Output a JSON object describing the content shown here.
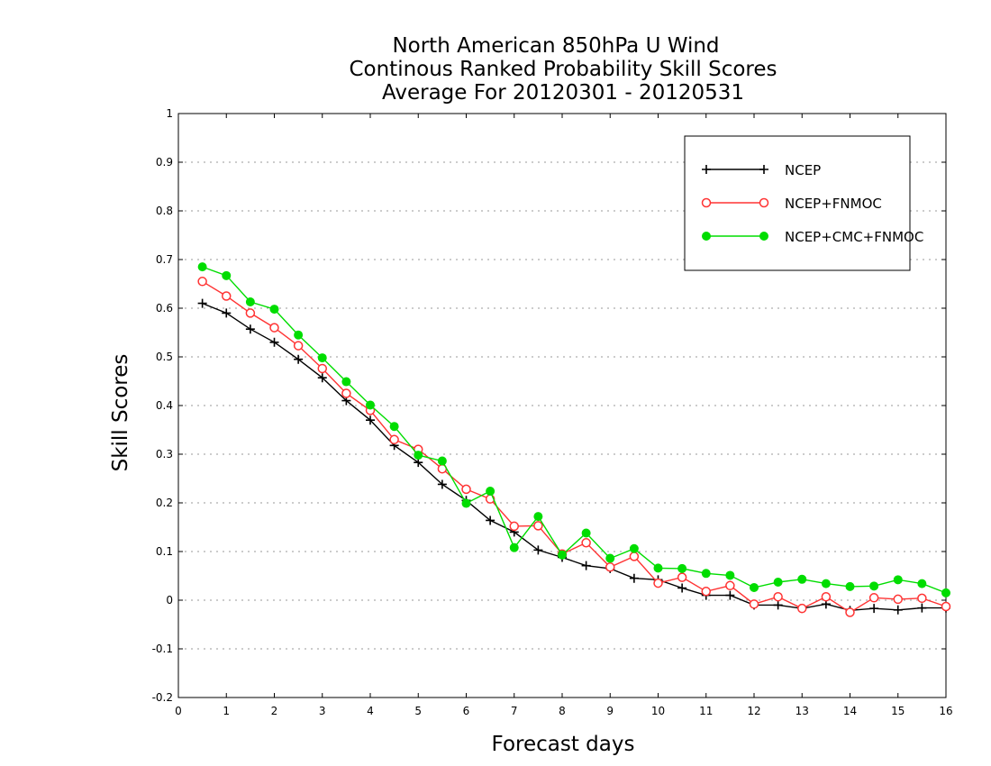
{
  "chart_data": {
    "type": "line",
    "title": [
      "North American 850hPa U Wind",
      "Continous Ranked Probability Skill Scores",
      "Average For 20120301 - 20120531"
    ],
    "xlabel": "Forecast days",
    "ylabel": "Skill Scores",
    "xlim": [
      0,
      16
    ],
    "ylim": [
      -0.2,
      1
    ],
    "xticks": [
      "0",
      "1",
      "2",
      "3",
      "4",
      "5",
      "6",
      "7",
      "8",
      "9",
      "10",
      "11",
      "12",
      "13",
      "14",
      "15",
      "16"
    ],
    "yticks": [
      "-0.2",
      "-0.1",
      "0",
      "0.1",
      "0.2",
      "0.3",
      "0.4",
      "0.5",
      "0.6",
      "0.7",
      "0.8",
      "0.9",
      "1"
    ],
    "ytick_values": [
      -0.2,
      -0.1,
      0,
      0.1,
      0.2,
      0.3,
      0.4,
      0.5,
      0.6,
      0.7,
      0.8,
      0.9,
      1
    ],
    "grid": "horizontal dotted",
    "legend_position": "top-right",
    "x": [
      0.5,
      1,
      1.5,
      2,
      2.5,
      3,
      3.5,
      4,
      4.5,
      5,
      5.5,
      6,
      6.5,
      7,
      7.5,
      8,
      8.5,
      9,
      9.5,
      10,
      10.5,
      11,
      11.5,
      12,
      12.5,
      13,
      13.5,
      14,
      14.5,
      15,
      15.5,
      16
    ],
    "series": [
      {
        "name": "NCEP",
        "color": "#000000",
        "marker": "plus",
        "values": [
          0.61,
          0.59,
          0.557,
          0.53,
          0.495,
          0.457,
          0.41,
          0.37,
          0.318,
          0.283,
          0.238,
          0.205,
          0.164,
          0.14,
          0.103,
          0.088,
          0.071,
          0.065,
          0.045,
          0.042,
          0.025,
          0.01,
          0.01,
          -0.01,
          -0.01,
          -0.017,
          -0.008,
          -0.021,
          -0.017,
          -0.02,
          -0.016,
          -0.016
        ]
      },
      {
        "name": "NCEP+FNMOC",
        "color": "#ff3333",
        "marker": "circle-open",
        "values": [
          0.655,
          0.625,
          0.59,
          0.56,
          0.523,
          0.476,
          0.425,
          0.39,
          0.33,
          0.31,
          0.27,
          0.228,
          0.208,
          0.152,
          0.153,
          0.095,
          0.118,
          0.068,
          0.09,
          0.035,
          0.047,
          0.018,
          0.03,
          -0.008,
          0.007,
          -0.017,
          0.007,
          -0.025,
          0.005,
          0.002,
          0.004,
          -0.013
        ]
      },
      {
        "name": "NCEP+CMC+FNMOC",
        "color": "#00dd00",
        "marker": "circle-filled",
        "values": [
          0.685,
          0.667,
          0.613,
          0.598,
          0.545,
          0.498,
          0.449,
          0.401,
          0.357,
          0.298,
          0.286,
          0.199,
          0.224,
          0.108,
          0.172,
          0.093,
          0.138,
          0.086,
          0.106,
          0.066,
          0.065,
          0.055,
          0.051,
          0.026,
          0.037,
          0.043,
          0.034,
          0.028,
          0.029,
          0.042,
          0.034,
          0.015
        ]
      }
    ]
  }
}
